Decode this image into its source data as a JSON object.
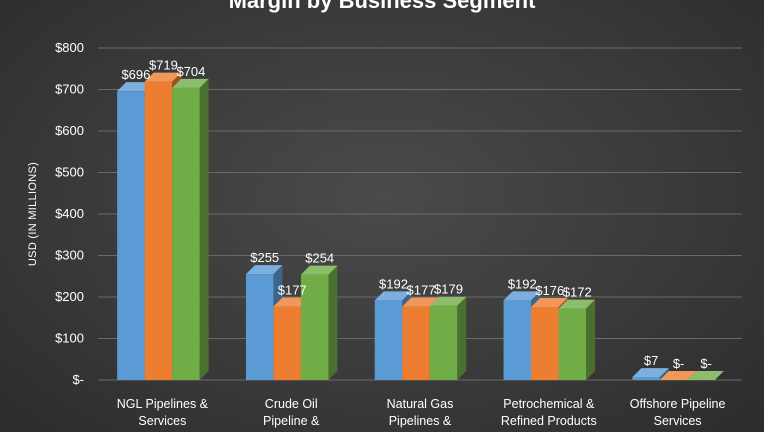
{
  "chart_data": {
    "type": "bar",
    "title": "Margin by Business Segment",
    "xlabel": "",
    "ylabel": "USD (IN MILLIONS)",
    "ylim": [
      0,
      800
    ],
    "yticks": [
      {
        "value": 0,
        "label": "$-"
      },
      {
        "value": 100,
        "label": "$100"
      },
      {
        "value": 200,
        "label": "$200"
      },
      {
        "value": 300,
        "label": "$300"
      },
      {
        "value": 400,
        "label": "$400"
      },
      {
        "value": 500,
        "label": "$500"
      },
      {
        "value": 600,
        "label": "$600"
      },
      {
        "value": 700,
        "label": "$700"
      },
      {
        "value": 800,
        "label": "$800"
      }
    ],
    "grid": true,
    "style": "3d-clustered-column",
    "categories": [
      [
        "NGL Pipelines &",
        "Services"
      ],
      [
        "Crude Oil",
        "Pipeline &"
      ],
      [
        "Natural Gas",
        "Pipelines &"
      ],
      [
        "Petrochemical &",
        "Refined Products"
      ],
      [
        "Offshore Pipeline",
        "Services"
      ]
    ],
    "series": [
      {
        "color": "#5b9bd5",
        "values": [
          696,
          255,
          192,
          192,
          7
        ],
        "labels": [
          "$696",
          "$255",
          "$192",
          "$192",
          "$7"
        ]
      },
      {
        "color": "#ed7d31",
        "values": [
          719,
          177,
          177,
          176,
          0
        ],
        "labels": [
          "$719",
          "$177",
          "$177",
          "$176",
          "$-"
        ]
      },
      {
        "color": "#70ad47",
        "values": [
          704,
          254,
          179,
          172,
          0
        ],
        "labels": [
          "$704",
          "$254",
          "$179",
          "$172",
          "$-"
        ]
      }
    ]
  }
}
